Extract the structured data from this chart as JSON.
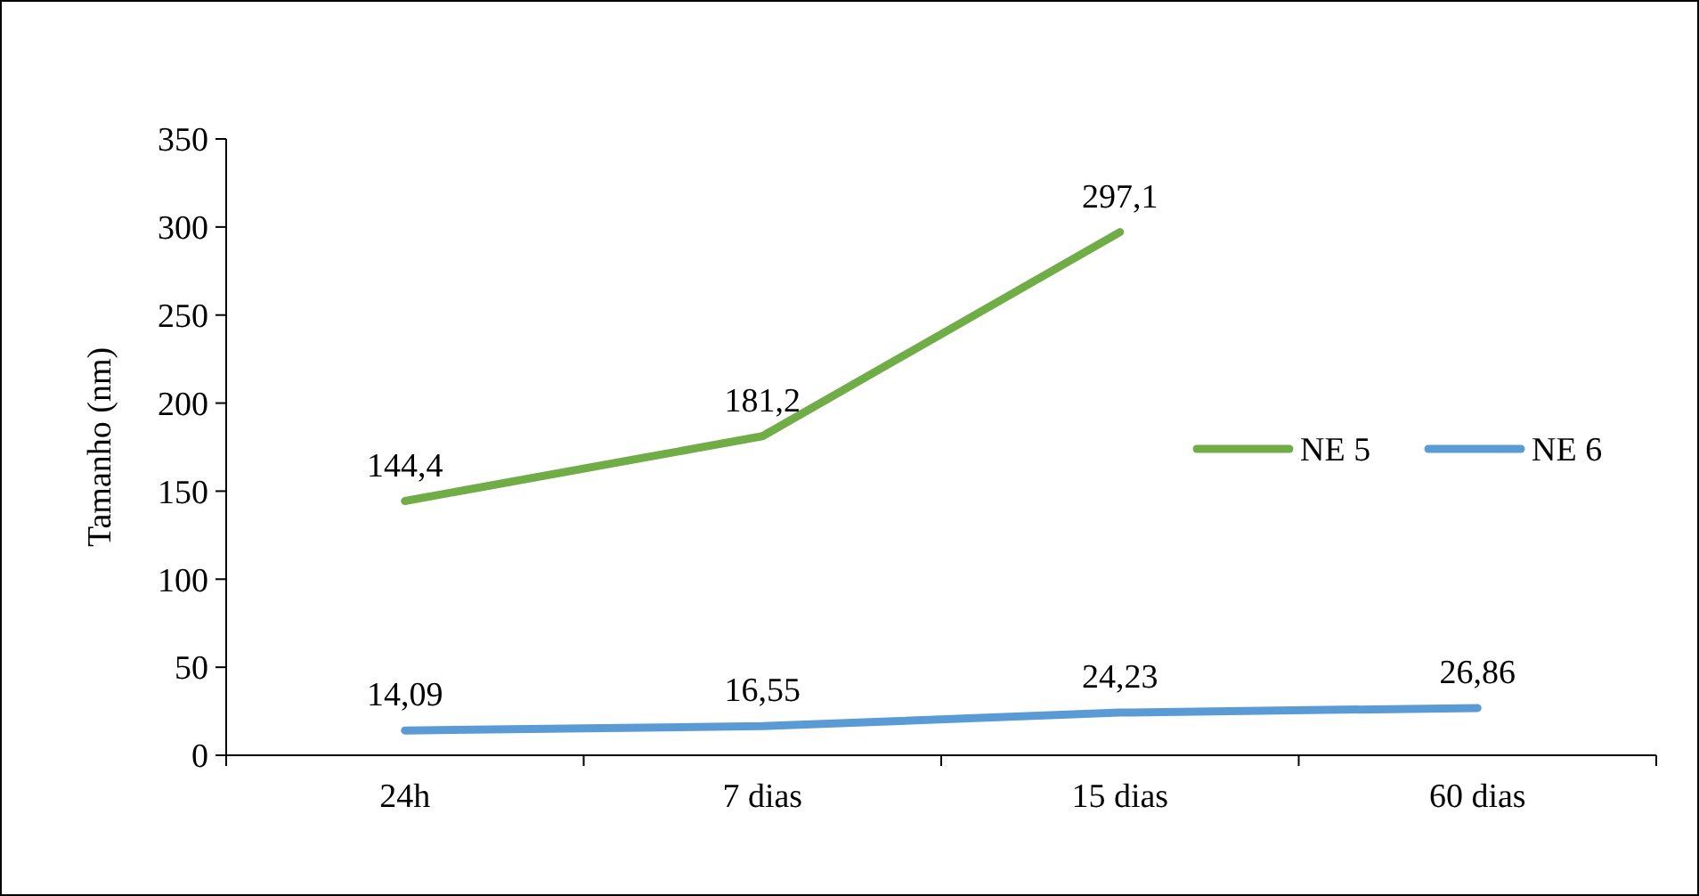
{
  "chart_data": {
    "type": "line",
    "ylabel": "Tamanho (nm)",
    "categories": [
      "24h",
      "7 dias",
      "15 dias",
      "60 dias"
    ],
    "series": [
      {
        "name": "NE 5",
        "color": "#70ad47",
        "values": [
          144.4,
          181.2,
          297.1,
          null
        ],
        "value_labels": [
          "144,4",
          "181,2",
          "297,1",
          null
        ]
      },
      {
        "name": "NE 6",
        "color": "#5b9bd5",
        "values": [
          14.09,
          16.55,
          24.23,
          26.86
        ],
        "value_labels": [
          "14,09",
          "16,55",
          "24,23",
          "26,86"
        ]
      }
    ],
    "ylim": [
      0,
      350
    ],
    "yticks": [
      0,
      50,
      100,
      150,
      200,
      250,
      300,
      350
    ],
    "grid": false,
    "legend": "right",
    "marker": "none",
    "line_style": "solid"
  }
}
